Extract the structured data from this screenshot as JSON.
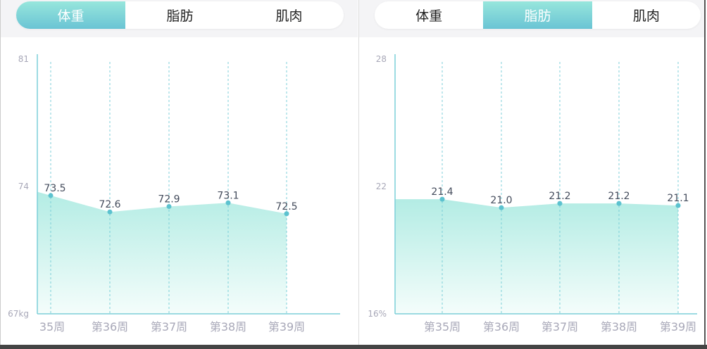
{
  "tabs": [
    "体重",
    "脂肪",
    "肌肉"
  ],
  "colors": {
    "accent": "#6ac4d4",
    "fill_top": "#b3ece4",
    "axis": "#7ccfd8",
    "point": "#5cc2cf",
    "label": "#444c5c",
    "tick": "#a8a8b8"
  },
  "chart_data": [
    {
      "type": "area",
      "active_tab": 0,
      "categories": [
        "35周",
        "第36周",
        "第37周",
        "第38周",
        "第39周"
      ],
      "values": [
        73.5,
        72.6,
        72.9,
        73.1,
        72.5
      ],
      "data_labels": [
        "73.5",
        "72.6",
        "72.9",
        "73.1",
        "72.5"
      ],
      "ylim": [
        67,
        81
      ],
      "yticks": [
        "81",
        "74",
        "67kg"
      ],
      "ytick_values": [
        81,
        74,
        67
      ],
      "grid": "vertical-dashed"
    },
    {
      "type": "area",
      "active_tab": 1,
      "categories": [
        "第35周",
        "第36周",
        "第37周",
        "第38周",
        "第39周"
      ],
      "values": [
        21.4,
        21.0,
        21.2,
        21.2,
        21.1
      ],
      "data_labels": [
        "21.4",
        "21.0",
        "21.2",
        "21.2",
        "21.1"
      ],
      "ylim": [
        16,
        28
      ],
      "yticks": [
        "28",
        "22",
        "16%"
      ],
      "ytick_values": [
        28,
        22,
        16
      ],
      "grid": "vertical-dashed"
    }
  ]
}
